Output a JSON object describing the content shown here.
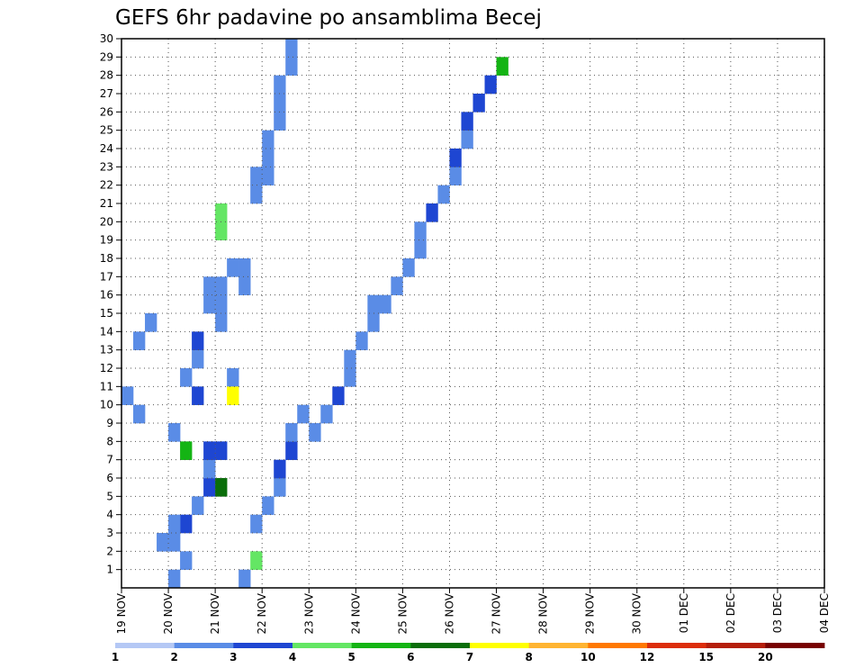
{
  "colors": {
    "frame": "#000000",
    "grid": "#555555",
    "bins": [
      "#b4c8f5",
      "#5a8ce6",
      "#1e46d2",
      "#64e664",
      "#14b414",
      "#0a6e0a",
      "#ffff00",
      "#ffb432",
      "#ff7800",
      "#dc2d0a",
      "#b41e0a",
      "#780000"
    ]
  },
  "chart_data": {
    "type": "heatmap",
    "title": "GEFS 6hr padavine po ansamblima Becej",
    "xlabel": "",
    "ylabel": "",
    "x_unit": "6-hour step",
    "x_ticks": [
      "19 NOV",
      "20 NOV",
      "21 NOV",
      "22 NOV",
      "23 NOV",
      "24 NOV",
      "25 NOV",
      "26 NOV",
      "27 NOV",
      "28 NOV",
      "29 NOV",
      "30 NOV",
      "01 DEC",
      "02 DEC",
      "03 DEC",
      "04 DEC"
    ],
    "y_ticks": [
      "1",
      "2",
      "3",
      "4",
      "5",
      "6",
      "7",
      "8",
      "9",
      "10",
      "11",
      "12",
      "13",
      "14",
      "15",
      "16",
      "17",
      "18",
      "19",
      "20",
      "21",
      "22",
      "23",
      "24",
      "25",
      "26",
      "27",
      "28",
      "29",
      "30"
    ],
    "xlim": [
      0,
      60
    ],
    "ylim": [
      0,
      30
    ],
    "grid": true,
    "legend": {
      "placement": "bottom",
      "bins": 12,
      "labels": [
        {
          "text": "1",
          "at": 0
        },
        {
          "text": "2",
          "at": 1
        },
        {
          "text": "3",
          "at": 2
        },
        {
          "text": "4",
          "at": 3
        },
        {
          "text": "5",
          "at": 4
        },
        {
          "text": "6",
          "at": 5
        },
        {
          "text": "7",
          "at": 6
        },
        {
          "text": "8",
          "at": 7
        },
        {
          "text": "10",
          "at": 8
        },
        {
          "text": "12",
          "at": 9
        },
        {
          "text": "15",
          "at": 10
        },
        {
          "text": "20",
          "at": 11
        }
      ]
    },
    "cells": [
      [
        0,
        10,
        1
      ],
      [
        8,
        7,
        2
      ],
      [
        4,
        0,
        1
      ],
      [
        5,
        1,
        1
      ],
      [
        4,
        2,
        1
      ],
      [
        5,
        3,
        2
      ],
      [
        6,
        4,
        1
      ],
      [
        7,
        5,
        2
      ],
      [
        7,
        6,
        1
      ],
      [
        3,
        2,
        1
      ],
      [
        4,
        3,
        1
      ],
      [
        7,
        7,
        2
      ],
      [
        8,
        5,
        5
      ],
      [
        9,
        11,
        1
      ],
      [
        9,
        10,
        6
      ],
      [
        1,
        13,
        1
      ],
      [
        5,
        7,
        4
      ],
      [
        4,
        8,
        1
      ],
      [
        1,
        9,
        1
      ],
      [
        5,
        11,
        1
      ],
      [
        6,
        10,
        2
      ],
      [
        2,
        14,
        1
      ],
      [
        6,
        12,
        1
      ],
      [
        6,
        13,
        2
      ],
      [
        10,
        0,
        1
      ],
      [
        11,
        1,
        3
      ],
      [
        11,
        3,
        1
      ],
      [
        12,
        4,
        1
      ],
      [
        13,
        5,
        1
      ],
      [
        13,
        6,
        2
      ],
      [
        14,
        7,
        2
      ],
      [
        14,
        8,
        1
      ],
      [
        15,
        9,
        1
      ],
      [
        16,
        8,
        1
      ],
      [
        17,
        9,
        1
      ],
      [
        18,
        10,
        2
      ],
      [
        19,
        11,
        1
      ],
      [
        19,
        12,
        1
      ],
      [
        20,
        13,
        1
      ],
      [
        21,
        14,
        1
      ],
      [
        21,
        15,
        1
      ],
      [
        22,
        15,
        1
      ],
      [
        23,
        16,
        1
      ],
      [
        24,
        17,
        1
      ],
      [
        25,
        18,
        1
      ],
      [
        25,
        19,
        1
      ],
      [
        26,
        20,
        2
      ],
      [
        27,
        21,
        1
      ],
      [
        28,
        22,
        1
      ],
      [
        28,
        23,
        2
      ],
      [
        29,
        24,
        1
      ],
      [
        29,
        25,
        2
      ],
      [
        30,
        26,
        2
      ],
      [
        31,
        27,
        2
      ],
      [
        32,
        28,
        4
      ],
      [
        8,
        20,
        3
      ],
      [
        8,
        19,
        3
      ],
      [
        8,
        16,
        1
      ],
      [
        8,
        15,
        1
      ],
      [
        8,
        14,
        1
      ],
      [
        7,
        16,
        1
      ],
      [
        7,
        15,
        1
      ],
      [
        9,
        17,
        1
      ],
      [
        10,
        16,
        1
      ],
      [
        10,
        17,
        1
      ],
      [
        11,
        21,
        1
      ],
      [
        11,
        22,
        1
      ],
      [
        12,
        22,
        1
      ],
      [
        12,
        23,
        1
      ],
      [
        12,
        24,
        1
      ],
      [
        13,
        25,
        1
      ],
      [
        13,
        26,
        1
      ],
      [
        13,
        27,
        1
      ],
      [
        14,
        28,
        1
      ],
      [
        14,
        29,
        1
      ]
    ]
  }
}
